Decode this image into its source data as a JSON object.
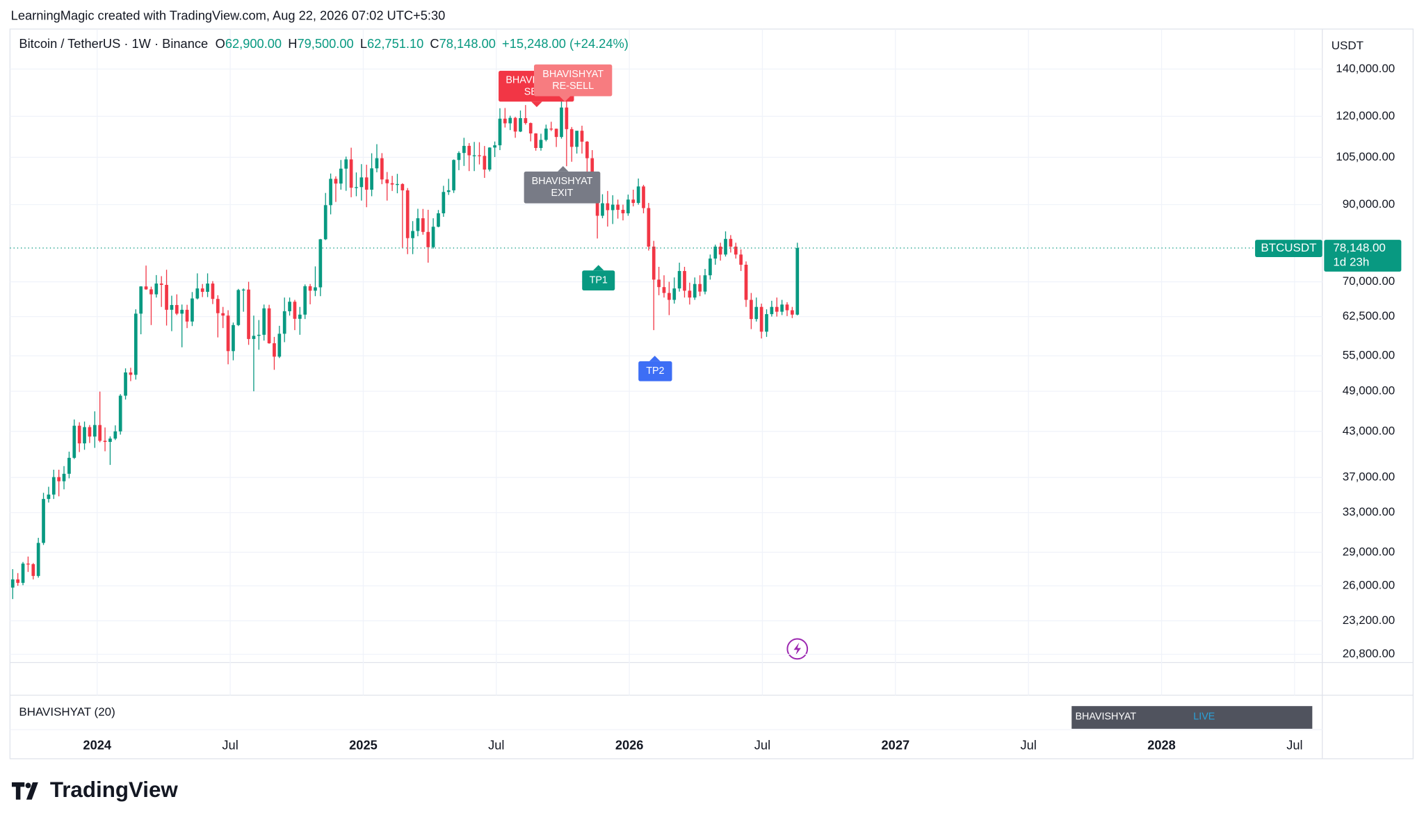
{
  "header": {
    "credit": "LearningMagic created with TradingView.com, Aug 22, 2026 07:02 UTC+5:30"
  },
  "chart_data": {
    "type": "candlestick",
    "symbol": "Bitcoin / TetherUS · 1W · Binance",
    "legend": [
      {
        "key": "O",
        "value": "62,900.00"
      },
      {
        "key": "H",
        "value": "79,500.00"
      },
      {
        "key": "L",
        "value": "62,751.10"
      },
      {
        "key": "C",
        "value": "78,148.00"
      }
    ],
    "change": "+15,248.00 (+24.24%)",
    "currency": "USDT",
    "colors": {
      "up": "#089981",
      "down": "#f23645"
    },
    "log_scale": true,
    "grid": true,
    "ylim": [
      20250,
      159000
    ],
    "yticks": [
      {
        "value": 20800,
        "label": "20,800.00"
      },
      {
        "value": 23200,
        "label": "23,200.00"
      },
      {
        "value": 26000,
        "label": "26,000.00"
      },
      {
        "value": 29000,
        "label": "29,000.00"
      },
      {
        "value": 33000,
        "label": "33,000.00"
      },
      {
        "value": 37000,
        "label": "37,000.00"
      },
      {
        "value": 43000,
        "label": "43,000.00"
      },
      {
        "value": 49000,
        "label": "49,000.00"
      },
      {
        "value": 55000,
        "label": "55,000.00"
      },
      {
        "value": 62500,
        "label": "62,500.00"
      },
      {
        "value": 70000,
        "label": "70,000.00"
      },
      {
        "value": 90000,
        "label": "90,000.00"
      },
      {
        "value": 105000,
        "label": "105,000.00"
      },
      {
        "value": 120000,
        "label": "120,000.00"
      },
      {
        "value": 140000,
        "label": "140,000.00"
      }
    ],
    "xticks": [
      "2024",
      "Jul",
      "2025",
      "Jul",
      "2026",
      "Jul",
      "2027",
      "Jul",
      "2028",
      "Jul"
    ],
    "ohlc": [
      [
        25850,
        27450,
        24900,
        26550
      ],
      [
        26550,
        27100,
        26000,
        26250
      ],
      [
        26250,
        28100,
        26050,
        27950
      ],
      [
        27950,
        28600,
        27200,
        27900
      ],
      [
        27900,
        28000,
        26550,
        26850
      ],
      [
        26850,
        30400,
        26700,
        29900
      ],
      [
        29900,
        35200,
        29700,
        34500
      ],
      [
        34500,
        35900,
        34100,
        35000
      ],
      [
        35000,
        37950,
        34500,
        37050
      ],
      [
        37050,
        37950,
        34800,
        36550
      ],
      [
        36550,
        38400,
        35600,
        37450
      ],
      [
        37450,
        40250,
        36900,
        39450
      ],
      [
        39450,
        44700,
        39300,
        43800
      ],
      [
        43800,
        44300,
        40200,
        41350
      ],
      [
        41350,
        44400,
        40500,
        43600
      ],
      [
        43600,
        43900,
        41400,
        42280
      ],
      [
        42280,
        45900,
        40750,
        43900
      ],
      [
        43900,
        48950,
        41500,
        41700
      ],
      [
        41700,
        43550,
        40300,
        41550
      ],
      [
        41550,
        42300,
        38550,
        42000
      ],
      [
        42000,
        43850,
        41800,
        43000
      ],
      [
        43000,
        48550,
        42550,
        48300
      ],
      [
        48300,
        52800,
        47700,
        52100
      ],
      [
        52100,
        52900,
        50650,
        51700
      ],
      [
        51700,
        64000,
        50900,
        63100
      ],
      [
        63100,
        69000,
        59000,
        68950
      ],
      [
        68950,
        73800,
        68200,
        68300
      ],
      [
        68300,
        68900,
        60800,
        67200
      ],
      [
        67200,
        71550,
        66500,
        69600
      ],
      [
        69600,
        71300,
        64500,
        69300
      ],
      [
        69300,
        72800,
        60700,
        63900
      ],
      [
        63900,
        66900,
        59600,
        64900
      ],
      [
        64900,
        67200,
        62800,
        63100
      ],
      [
        63100,
        65000,
        56550,
        63900
      ],
      [
        63900,
        64950,
        60200,
        61500
      ],
      [
        61500,
        67700,
        60600,
        66300
      ],
      [
        66300,
        71950,
        66100,
        68500
      ],
      [
        68500,
        69500,
        66600,
        67750
      ],
      [
        67750,
        71950,
        66600,
        69600
      ],
      [
        69600,
        70150,
        65100,
        66200
      ],
      [
        66200,
        67000,
        58400,
        63200
      ],
      [
        63200,
        64500,
        60200,
        62700
      ],
      [
        62700,
        63800,
        53500,
        55850
      ],
      [
        55850,
        61300,
        54200,
        60800
      ],
      [
        60800,
        68400,
        60600,
        68150
      ],
      [
        68150,
        68500,
        63500,
        68250
      ],
      [
        68250,
        70000,
        57000,
        58100
      ],
      [
        58100,
        62700,
        49000,
        58700
      ],
      [
        58700,
        61800,
        56100,
        58900
      ],
      [
        58900,
        65000,
        57800,
        64200
      ],
      [
        64200,
        64950,
        57200,
        57300
      ],
      [
        57300,
        58500,
        52550,
        54850
      ],
      [
        54850,
        60650,
        54600,
        59100
      ],
      [
        59100,
        66500,
        57500,
        63600
      ],
      [
        63600,
        66500,
        62700,
        65600
      ],
      [
        65600,
        66000,
        59800,
        62050
      ],
      [
        62050,
        64500,
        58900,
        62900
      ],
      [
        62900,
        69400,
        62000,
        69000
      ],
      [
        69000,
        69500,
        65050,
        68000
      ],
      [
        68000,
        73600,
        66800,
        68750
      ],
      [
        68750,
        80500,
        66800,
        80400
      ],
      [
        80400,
        93500,
        80200,
        89850
      ],
      [
        89850,
        99600,
        87200,
        97900
      ],
      [
        97900,
        98700,
        90800,
        96400
      ],
      [
        96400,
        104100,
        94500,
        101200
      ],
      [
        101200,
        105250,
        94150,
        104300
      ],
      [
        104300,
        108350,
        92200,
        95100
      ],
      [
        95100,
        99950,
        92500,
        95300
      ],
      [
        95300,
        102700,
        91200,
        98350
      ],
      [
        98350,
        102500,
        89250,
        94500
      ],
      [
        94500,
        106400,
        92500,
        101300
      ],
      [
        101300,
        109600,
        100000,
        104700
      ],
      [
        104700,
        106450,
        96200,
        97700
      ],
      [
        97700,
        100100,
        91200,
        96500
      ],
      [
        96500,
        98850,
        94100,
        96100
      ],
      [
        96100,
        99500,
        93400,
        96250
      ],
      [
        96250,
        96500,
        78200,
        94300
      ],
      [
        94300,
        95000,
        76600,
        80700
      ],
      [
        80700,
        85300,
        76600,
        82600
      ],
      [
        82600,
        88800,
        81200,
        86100
      ],
      [
        86100,
        88750,
        81600,
        82350
      ],
      [
        82350,
        88500,
        74500,
        78350
      ],
      [
        78350,
        86100,
        78000,
        83750
      ],
      [
        83750,
        88450,
        83600,
        87500
      ],
      [
        87500,
        95700,
        86500,
        93800
      ],
      [
        93800,
        97900,
        92900,
        94300
      ],
      [
        94300,
        104300,
        93500,
        104100
      ],
      [
        104100,
        107100,
        100700,
        106500
      ],
      [
        106500,
        111900,
        102100,
        109000
      ],
      [
        109000,
        110000,
        100400,
        105700
      ],
      [
        105700,
        110400,
        100400,
        105700
      ],
      [
        105700,
        110300,
        102600,
        105500
      ],
      [
        105500,
        108950,
        98200,
        100900
      ],
      [
        100900,
        108500,
        100300,
        108400
      ],
      [
        108400,
        110550,
        105100,
        109200
      ],
      [
        109200,
        123200,
        107500,
        119100
      ],
      [
        119100,
        123300,
        115700,
        117300
      ],
      [
        117300,
        120250,
        114750,
        119400
      ],
      [
        119400,
        119800,
        111900,
        114200
      ],
      [
        114200,
        122300,
        114000,
        119300
      ],
      [
        119300,
        124500,
        116800,
        117400
      ],
      [
        117400,
        117600,
        110600,
        113500
      ],
      [
        113500,
        113600,
        107300,
        108250
      ],
      [
        108250,
        113400,
        107300,
        111150
      ],
      [
        111150,
        116800,
        110600,
        115300
      ],
      [
        115300,
        117900,
        114400,
        115250
      ],
      [
        115250,
        115300,
        108600,
        112200
      ],
      [
        112200,
        126200,
        111600,
        123500
      ],
      [
        123500,
        126000,
        102000,
        115100
      ],
      [
        115100,
        115900,
        103500,
        108650
      ],
      [
        108650,
        114000,
        106300,
        114500
      ],
      [
        114500,
        116400,
        106300,
        110500
      ],
      [
        110500,
        110700,
        98900,
        104700
      ],
      [
        104700,
        107500,
        93000,
        94200
      ],
      [
        94200,
        96600,
        80600,
        86800
      ],
      [
        86800,
        93100,
        86100,
        90400
      ],
      [
        90400,
        94100,
        83800,
        88400
      ],
      [
        88400,
        92800,
        84500,
        90000
      ],
      [
        90000,
        91500,
        86000,
        88500
      ],
      [
        88500,
        90000,
        85500,
        87500
      ],
      [
        87500,
        93000,
        86800,
        91500
      ],
      [
        91500,
        94500,
        89500,
        90500
      ],
      [
        90500,
        98000,
        90000,
        95500
      ],
      [
        95500,
        96000,
        87500,
        89000
      ],
      [
        89000,
        90500,
        77500,
        78500
      ],
      [
        78500,
        80000,
        59800,
        70500
      ],
      [
        70500,
        73500,
        67000,
        68800
      ],
      [
        68800,
        71500,
        66500,
        67500
      ],
      [
        67500,
        70000,
        62800,
        66000
      ],
      [
        66000,
        71000,
        65200,
        68500
      ],
      [
        68500,
        74500,
        67800,
        72500
      ],
      [
        72500,
        73500,
        66500,
        68000
      ],
      [
        68000,
        69800,
        65000,
        66500
      ],
      [
        66500,
        71000,
        66000,
        69500
      ],
      [
        69500,
        71500,
        66800,
        67800
      ],
      [
        67800,
        73000,
        67200,
        71500
      ],
      [
        71500,
        76500,
        70500,
        75500
      ],
      [
        75500,
        79000,
        74000,
        78500
      ],
      [
        78500,
        79500,
        75000,
        76500
      ],
      [
        76500,
        82500,
        76000,
        80500
      ],
      [
        80500,
        81500,
        77000,
        78500
      ],
      [
        78500,
        79500,
        75500,
        76500
      ],
      [
        76500,
        77800,
        72500,
        74000
      ],
      [
        74000,
        74800,
        64500,
        66000
      ],
      [
        66000,
        67500,
        60000,
        62000
      ],
      [
        62000,
        66500,
        61500,
        64500
      ],
      [
        64500,
        65200,
        58200,
        59500
      ],
      [
        59500,
        64000,
        58500,
        63000
      ],
      [
        63000,
        65800,
        62500,
        64500
      ],
      [
        64500,
        66500,
        62500,
        63500
      ],
      [
        63500,
        66000,
        62800,
        65000
      ],
      [
        65000,
        65500,
        62600,
        63800
      ],
      [
        63800,
        64500,
        62200,
        62900
      ],
      [
        62900,
        79500,
        62751.1,
        78148
      ]
    ],
    "last_price": {
      "symbol": "BTCUSDT",
      "label": "78,148.00",
      "countdown": "1d 23h"
    },
    "annotations": [
      {
        "text": [
          "BHAVISHYAT",
          "SELL"
        ],
        "color": "#f23645"
      },
      {
        "text": [
          "BHAVISHYAT",
          "RE-SELL"
        ],
        "color": "#f77c80"
      },
      {
        "text": [
          "BHAVISHYAT",
          "EXIT"
        ],
        "color": "#787b86"
      },
      {
        "text": [
          "TP1"
        ],
        "color": "#089981"
      },
      {
        "text": [
          "TP2"
        ],
        "color": "#3d6ef5"
      }
    ],
    "indicator": {
      "name": "BHAVISHYAT (20)",
      "badge": "BHAVISHYAT",
      "status": "LIVE"
    }
  },
  "footer": {
    "logo": "TradingView"
  }
}
